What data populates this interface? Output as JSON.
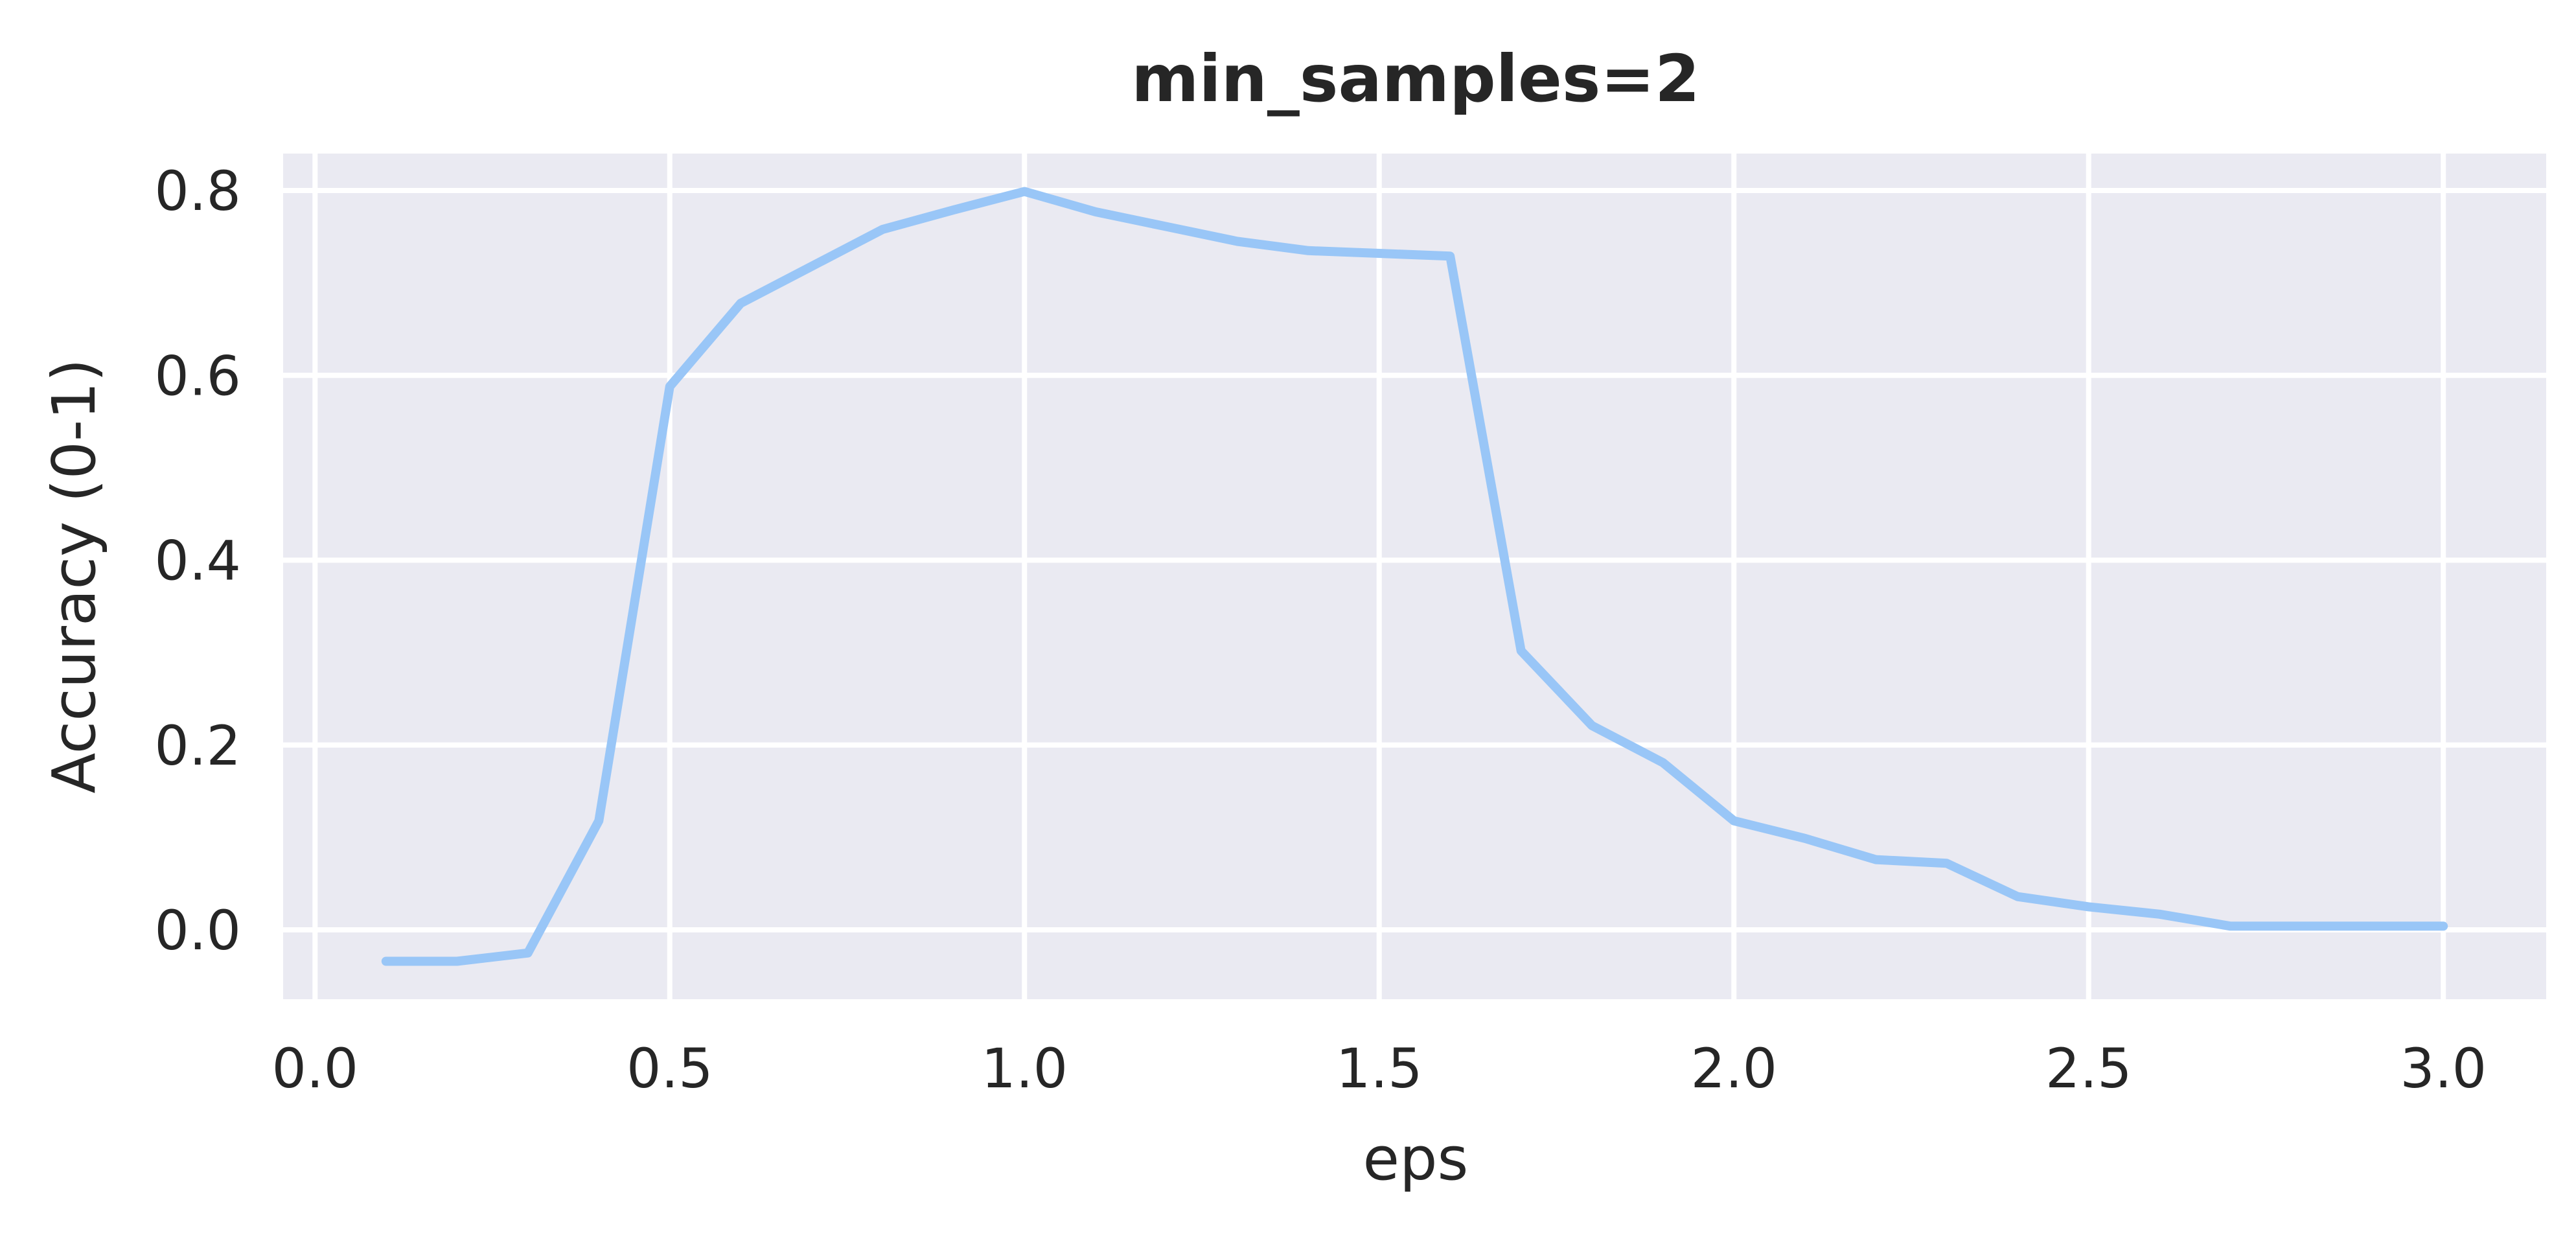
{
  "chart_data": {
    "type": "line",
    "title": "min_samples=2",
    "xlabel": "eps",
    "ylabel": "Accuracy (0-1)",
    "xlim": [
      -0.045,
      3.145
    ],
    "ylim": [
      -0.075,
      0.84
    ],
    "xticks": [
      0.0,
      0.5,
      1.0,
      1.5,
      2.0,
      2.5,
      3.0
    ],
    "xtick_labels": [
      "0.0",
      "0.5",
      "1.0",
      "1.5",
      "2.0",
      "2.5",
      "3.0"
    ],
    "yticks": [
      0.0,
      0.2,
      0.4,
      0.6,
      0.8
    ],
    "ytick_labels": [
      "0.0",
      "0.2",
      "0.4",
      "0.6",
      "0.8"
    ],
    "grid": true,
    "series": [
      {
        "color": "#99c6f7",
        "x": [
          0.1,
          0.2,
          0.3,
          0.4,
          0.5,
          0.6,
          0.7,
          0.8,
          0.9,
          1.0,
          1.1,
          1.2,
          1.3,
          1.4,
          1.5,
          1.6,
          1.7,
          1.8,
          1.9,
          2.0,
          2.1,
          2.2,
          2.3,
          2.4,
          2.5,
          2.6,
          2.7,
          2.8,
          2.9,
          3.0
        ],
        "y": [
          -0.034,
          -0.034,
          -0.025,
          0.118,
          0.588,
          0.678,
          0.718,
          0.758,
          0.779,
          0.799,
          0.777,
          0.761,
          0.745,
          0.735,
          0.732,
          0.729,
          0.302,
          0.221,
          0.181,
          0.118,
          0.099,
          0.076,
          0.072,
          0.036,
          0.025,
          0.017,
          0.004,
          0.004,
          0.004,
          0.004
        ]
      }
    ]
  }
}
